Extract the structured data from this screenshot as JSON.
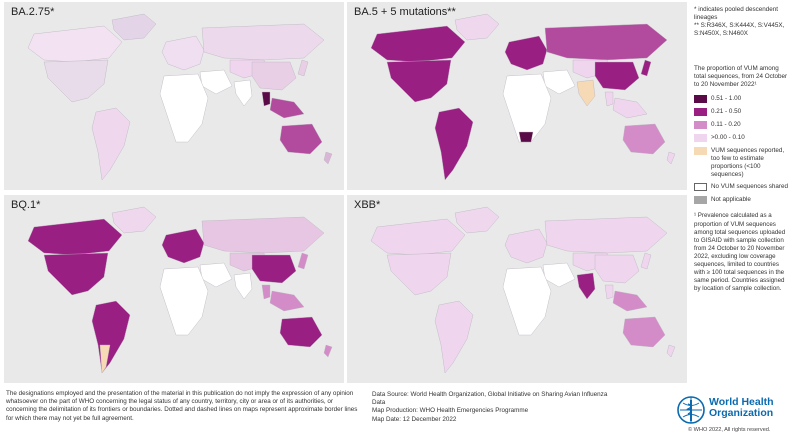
{
  "panels": [
    {
      "id": "p1",
      "title": "BA.2.75*",
      "fills": {
        "na": "e8dcea",
        "eu": "f0dff0",
        "gl": "e4d4e8",
        "sa": "efd8ee",
        "af": "ffffff",
        "ru": "ecdaec",
        "me": "ffffff",
        "as": "efd6ee",
        "in": "ffffff",
        "cn": "e8cfe6",
        "se": "b24b9e",
        "th": "5a0a46",
        "au": "b24b9e",
        "nz": "d9b6d6",
        "jp": "e8cfe6",
        "ca": "f3e3f2"
      }
    },
    {
      "id": "p2",
      "title": "BA.5 + 5 mutations**",
      "fills": {
        "na": "9a1f83",
        "eu": "9a1f83",
        "gl": "efd8ee",
        "sa": "9a1f83",
        "af": "ffffff",
        "ru": "b24b9e",
        "me": "ffffff",
        "as": "efd6ee",
        "in": "f6d9b5",
        "cn": "9a1f83",
        "se": "efd6ee",
        "th": "efd6ee",
        "au": "d38cc8",
        "nz": "efd6ee",
        "jp": "9a1f83",
        "ca": "9a1f83",
        "za": "5a0a46"
      }
    },
    {
      "id": "p3",
      "title": "BQ.1*",
      "fills": {
        "na": "9a1f83",
        "eu": "9a1f83",
        "gl": "efd8ee",
        "sa": "9a1f83",
        "af": "ffffff",
        "ru": "e7c6e3",
        "me": "ffffff",
        "as": "e7c6e3",
        "in": "ffffff",
        "cn": "9a1f83",
        "se": "d38cc8",
        "th": "d38cc8",
        "au": "9a1f83",
        "nz": "d38cc8",
        "jp": "d38cc8",
        "ca": "9a1f83",
        "ar": "f6d9b5"
      }
    },
    {
      "id": "p4",
      "title": "XBB*",
      "fills": {
        "na": "efd6ee",
        "eu": "efd6ee",
        "gl": "efd8ee",
        "sa": "efd6ee",
        "af": "ffffff",
        "ru": "efd6ee",
        "me": "ffffff",
        "as": "efd6ee",
        "in": "9a1f83",
        "cn": "efd6ee",
        "se": "d38cc8",
        "th": "efd6ee",
        "au": "d38cc8",
        "nz": "efd6ee",
        "jp": "efd6ee",
        "ca": "efd6ee"
      }
    }
  ],
  "legend": {
    "note_line1": "* indicates pooled descendent lineages",
    "note_line2": "** S:R346X, S:K444X, S:V445X, S:N450X, S:N460X",
    "subtitle": "The proportion of VUM among total sequences, from 24 October to 20 November 2022¹",
    "items": [
      {
        "label": "0.51 - 1.00",
        "color": "#5a0a46"
      },
      {
        "label": "0.21 - 0.50",
        "color": "#9a1f83"
      },
      {
        "label": "0.11 - 0.20",
        "color": "#d38cc8"
      },
      {
        "label": ">0.00 - 0.10",
        "color": "#efd6ee"
      },
      {
        "label": "VUM sequences reported, too few to estimate proportions (<100 sequences)",
        "color": "#f6d9b5"
      },
      {
        "label": "No VUM sequences shared",
        "color": "#ffffff"
      },
      {
        "label": "Not applicable",
        "color": "#a6a6a6"
      }
    ],
    "footnote": "¹ Prevalence calculated as a proportion of VUM sequences among total sequences uploaded to GISAID with sample collection from 24 October to 20 November 2022, excluding low coverage sequences, limited to countries with ≥ 100 total sequences in the same period. Countries assigned by location of sample collection."
  },
  "disclaimer": "The designations employed and the presentation of the material in this publication do not imply the expression of any opinion whatsoever on the part of WHO concerning the legal status of any country, territory, city or area or of its authorities, or concerning the delimitation of its frontiers or boundaries. Dotted and dashed lines on maps represent approximate border lines for which there may not yet be full agreement.",
  "source": {
    "line1": "Data Source: World Health Organization, Global Initiative on Sharing Avian Influenza Data",
    "line2": "Map Production: WHO Health Emergencies Programme",
    "line3": "Map Date: 12 December 2022"
  },
  "who": {
    "name_line1": "World Health",
    "name_line2": "Organization",
    "copyright": "© WHO 2022, All rights reserved."
  }
}
